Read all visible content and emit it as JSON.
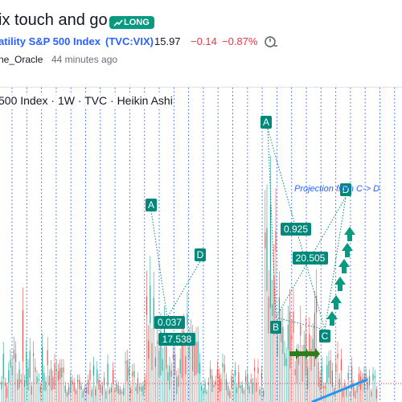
{
  "header": {
    "title": "ix touch and go",
    "badge": "LONG",
    "symbol_name": "atility S&P 500 Index",
    "symbol_code": "(TVC:VIX)",
    "price": "15.97",
    "change": "−0.14",
    "change_pct": "−0.87%",
    "author": "ne_Oracle",
    "time": "44 minutes ago"
  },
  "chart": {
    "legend": "500 Index · 1W · TVC · Heikin Ashi",
    "projection": "Projection from C-> D",
    "labels": [
      "A",
      "D",
      "0.037",
      "17.538",
      "A",
      "0.925",
      "20.505",
      "B",
      "C",
      "D"
    ]
  }
}
